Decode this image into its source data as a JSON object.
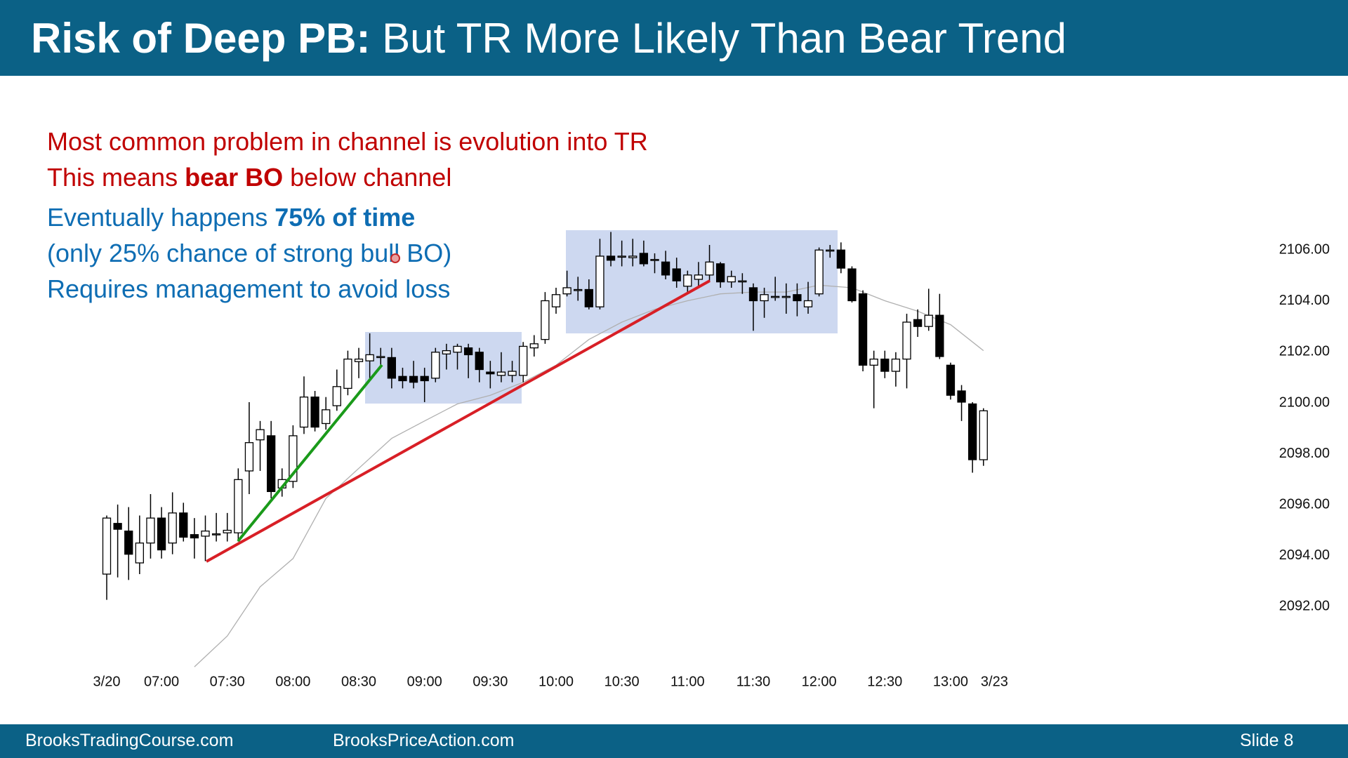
{
  "header": {
    "title_bold": "Risk of Deep PB:",
    "title_rest": "But TR More Likely Than Bear Trend"
  },
  "text_lines": [
    {
      "color": "#c00000",
      "parts": [
        {
          "text": "Most common problem in channel is evolution into TR",
          "bold": false
        }
      ]
    },
    {
      "color": "#c00000",
      "parts": [
        {
          "text": "This means",
          "bold": false
        },
        {
          "text": "bear BO",
          "bold": true
        },
        {
          "text": "below channel",
          "bold": false
        }
      ]
    },
    {
      "color": "#0e6db3",
      "parts": [
        {
          "text": "Eventually happens",
          "bold": false
        },
        {
          "text": "75% of time",
          "bold": true
        }
      ]
    },
    {
      "color": "#0e6db3",
      "parts": [
        {
          "text": "(only 25% chance of strong bull BO)",
          "bold": false
        }
      ]
    },
    {
      "color": "#0e6db3",
      "parts": [
        {
          "text": "Requires management to avoid loss",
          "bold": false
        }
      ]
    }
  ],
  "footer": {
    "left": "BrooksTradingCourse.com",
    "middle": "BrooksPriceAction.com",
    "slide": "Slide  8"
  },
  "chart_data": {
    "type": "candlestick",
    "open": [
      2093.28,
      2095.27,
      2094.97,
      2093.72,
      2094.5,
      2095.48,
      2094.5,
      2095.68,
      2094.83,
      2094.77,
      2094.83,
      2094.9,
      2094.9,
      2097.33,
      2098.55,
      2098.71,
      2096.66,
      2096.92,
      2099.05,
      2100.23,
      2099.19,
      2099.89,
      2100.57,
      2101.62,
      2101.65,
      2101.82,
      2101.78,
      2101.04,
      2101.04,
      2101.04,
      2100.97,
      2101.92,
      2101.99,
      2102.16,
      2101.99,
      2101.21,
      2101.08,
      2101.08,
      2101.08,
      2102.16,
      2102.49,
      2103.77,
      2104.28,
      2104.45,
      2104.45,
      2103.77,
      2105.76,
      2105.76,
      2105.7,
      2105.87,
      2105.63,
      2105.53,
      2105.26,
      2104.58,
      2104.85,
      2105.02,
      2105.46,
      2104.75,
      2104.79,
      2104.52,
      2104.01,
      2104.18,
      2104.18,
      2104.25,
      2103.77,
      2104.28,
      2106.0,
      2106.0,
      2105.26,
      2104.28,
      2101.48,
      2101.72,
      2101.24,
      2101.72,
      2103.27,
      2103.0,
      2103.44,
      2101.48,
      2100.47,
      2099.96,
      2097.77
    ],
    "high": [
      2095.58,
      2096.01,
      2095.91,
      2095.58,
      2096.42,
      2095.91,
      2096.49,
      2096.08,
      2095.48,
      2095.58,
      2095.68,
      2095.68,
      2097.43,
      2100.03,
      2099.29,
      2099.29,
      2097.43,
      2099.12,
      2101.04,
      2100.47,
      2100.23,
      2101.31,
      2102.05,
      2102.16,
      2102.73,
      2102.16,
      2102.16,
      2101.38,
      2101.65,
      2101.38,
      2102.16,
      2102.32,
      2102.32,
      2102.32,
      2102.16,
      2101.65,
      2101.99,
      2101.65,
      2102.39,
      2102.66,
      2104.35,
      2104.52,
      2105.19,
      2104.95,
      2104.85,
      2106.44,
      2106.71,
      2106.37,
      2106.44,
      2106.37,
      2105.87,
      2105.97,
      2105.7,
      2105.19,
      2105.53,
      2106.2,
      2105.53,
      2105.19,
      2105.09,
      2104.69,
      2104.52,
      2104.95,
      2104.69,
      2104.69,
      2104.75,
      2106.1,
      2106.2,
      2106.3,
      2105.36,
      2104.42,
      2102.05,
      2102.05,
      2101.99,
      2103.5,
      2103.67,
      2104.48,
      2104.28,
      2101.58,
      2100.7,
      2100.03,
      2099.79
    ],
    "low": [
      2092.27,
      2093.15,
      2093.05,
      2093.28,
      2093.89,
      2093.89,
      2094.06,
      2094.56,
      2093.89,
      2093.79,
      2094.56,
      2094.56,
      2094.56,
      2096.42,
      2097.33,
      2096.25,
      2096.32,
      2096.66,
      2098.78,
      2098.88,
      2098.95,
      2099.69,
      2100.3,
      2100.97,
      2100.97,
      2101.48,
      2100.57,
      2100.57,
      2100.57,
      2100.03,
      2100.81,
      2101.31,
      2101.31,
      2100.97,
      2100.81,
      2100.57,
      2100.81,
      2100.81,
      2100.81,
      2101.82,
      2102.32,
      2103.5,
      2104.18,
      2104.01,
      2103.67,
      2103.67,
      2105.36,
      2105.36,
      2105.36,
      2105.36,
      2105.09,
      2104.85,
      2104.52,
      2104.35,
      2104.58,
      2104.79,
      2104.52,
      2104.52,
      2104.28,
      2102.83,
      2103.34,
      2104.01,
      2103.5,
      2103.4,
      2103.5,
      2104.18,
      2105.7,
      2105.09,
      2103.94,
      2101.24,
      2099.79,
      2100.97,
      2100.64,
      2100.57,
      2102.59,
      2102.83,
      2101.72,
      2100.13,
      2099.29,
      2097.26,
      2097.53
    ],
    "close": [
      2095.48,
      2095.04,
      2094.06,
      2094.5,
      2095.48,
      2094.23,
      2095.68,
      2094.73,
      2094.7,
      2094.97,
      2094.86,
      2095.0,
      2096.99,
      2098.44,
      2098.95,
      2096.52,
      2096.99,
      2098.71,
      2100.23,
      2099.05,
      2099.73,
      2100.64,
      2101.72,
      2101.72,
      2101.89,
      2101.82,
      2100.97,
      2100.87,
      2100.81,
      2100.87,
      2101.99,
      2102.05,
      2102.22,
      2101.89,
      2101.31,
      2101.14,
      2101.21,
      2101.24,
      2102.22,
      2102.32,
      2104.01,
      2104.25,
      2104.52,
      2104.45,
      2103.77,
      2105.76,
      2105.6,
      2105.76,
      2105.76,
      2105.46,
      2105.63,
      2105.02,
      2104.79,
      2105.02,
      2105.02,
      2105.53,
      2104.75,
      2104.96,
      2104.79,
      2104.01,
      2104.25,
      2104.18,
      2104.18,
      2104.01,
      2104.01,
      2106.0,
      2106.0,
      2105.29,
      2104.01,
      2101.48,
      2101.72,
      2101.24,
      2101.72,
      2103.17,
      2103.0,
      2103.44,
      2101.82,
      2100.3,
      2100.03,
      2097.77,
      2099.69
    ],
    "ma": {
      "color": "#b0b0b0",
      "x": [
        8,
        11,
        14,
        17,
        20,
        23,
        26,
        29,
        32,
        35,
        38,
        41,
        44,
        47,
        50,
        53,
        56,
        59,
        62,
        65,
        68,
        71,
        74,
        77,
        80
      ],
      "values": [
        2089.64,
        2090.85,
        2092.78,
        2093.89,
        2096.25,
        2097.43,
        2098.61,
        2099.29,
        2099.96,
        2100.3,
        2100.81,
        2101.48,
        2102.49,
        2103.17,
        2103.67,
        2104.01,
        2104.28,
        2104.35,
        2104.35,
        2104.62,
        2104.52,
        2104.01,
        2103.6,
        2103.07,
        2102.05
      ]
    },
    "xlim": [
      -1,
      82
    ],
    "xticks": [
      {
        "value": 0,
        "label": "3/20"
      },
      {
        "value": 5,
        "label": "07:00"
      },
      {
        "value": 11,
        "label": "07:30"
      },
      {
        "value": 17,
        "label": "08:00"
      },
      {
        "value": 23,
        "label": "08:30"
      },
      {
        "value": 29,
        "label": "09:00"
      },
      {
        "value": 35,
        "label": "09:30"
      },
      {
        "value": 41,
        "label": "10:00"
      },
      {
        "value": 47,
        "label": "10:30"
      },
      {
        "value": 53,
        "label": "11:00"
      },
      {
        "value": 59,
        "label": "11:30"
      },
      {
        "value": 65,
        "label": "12:00"
      },
      {
        "value": 71,
        "label": "12:30"
      },
      {
        "value": 77,
        "label": "13:00"
      },
      {
        "value": 81,
        "label": "3/23"
      }
    ],
    "ylim": [
      2088.5,
      2108.5
    ],
    "yticks": [
      {
        "value": 2092,
        "label": "2092.00"
      },
      {
        "value": 2094,
        "label": "2094.00"
      },
      {
        "value": 2096,
        "label": "2096.00"
      },
      {
        "value": 2098,
        "label": "2098.00"
      },
      {
        "value": 2100,
        "label": "2100.00"
      },
      {
        "value": 2102,
        "label": "2102.00"
      },
      {
        "value": 2104,
        "label": "2104.00"
      },
      {
        "value": 2106,
        "label": "2106.00"
      }
    ],
    "up_color": "#ffffff",
    "down_color": "#000000"
  }
}
